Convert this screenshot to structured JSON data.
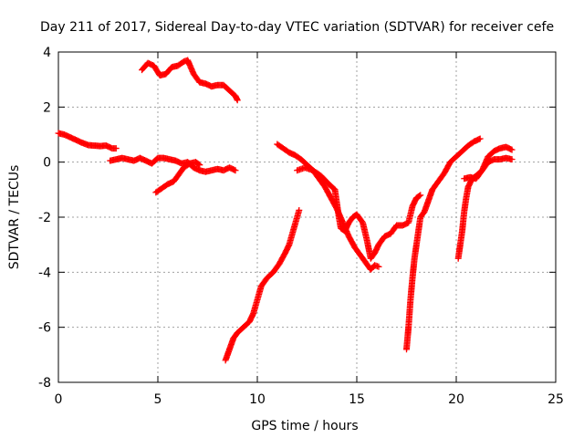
{
  "chart_data": {
    "type": "scatter",
    "title": "Day 211 of 2017, Sidereal Day-to-day VTEC variation (SDTVAR) for receiver cefe",
    "xlabel": "GPS time / hours",
    "ylabel": "SDTVAR / TECUs",
    "xlim": [
      0,
      25
    ],
    "ylim": [
      -8,
      4
    ],
    "xticks": [
      "0",
      "5",
      "10",
      "15",
      "20",
      "25"
    ],
    "yticks": [
      "-8",
      "-6",
      "-4",
      "-2",
      "0",
      "2",
      "4"
    ],
    "grid": true,
    "marker": "plus",
    "color": "#ff0000",
    "segments": [
      {
        "points": [
          [
            0.0,
            1.05
          ],
          [
            0.3,
            1.0
          ],
          [
            0.6,
            0.9
          ],
          [
            0.9,
            0.8
          ],
          [
            1.2,
            0.7
          ],
          [
            1.5,
            0.62
          ],
          [
            1.8,
            0.6
          ],
          [
            2.1,
            0.58
          ],
          [
            2.4,
            0.6
          ],
          [
            2.7,
            0.5
          ],
          [
            2.9,
            0.5
          ]
        ]
      },
      {
        "points": [
          [
            2.6,
            0.05
          ],
          [
            2.9,
            0.1
          ],
          [
            3.2,
            0.15
          ],
          [
            3.5,
            0.1
          ],
          [
            3.8,
            0.05
          ],
          [
            4.1,
            0.15
          ],
          [
            4.4,
            0.05
          ],
          [
            4.7,
            -0.05
          ],
          [
            5.0,
            0.15
          ],
          [
            5.3,
            0.15
          ],
          [
            5.6,
            0.1
          ],
          [
            5.9,
            0.05
          ],
          [
            6.2,
            -0.05
          ],
          [
            6.5,
            0.0
          ],
          [
            6.8,
            -0.2
          ],
          [
            7.1,
            -0.3
          ],
          [
            7.4,
            -0.35
          ],
          [
            7.7,
            -0.3
          ],
          [
            8.0,
            -0.25
          ],
          [
            8.3,
            -0.3
          ],
          [
            8.6,
            -0.2
          ],
          [
            8.9,
            -0.3
          ]
        ]
      },
      {
        "points": [
          [
            4.9,
            -1.1
          ],
          [
            5.2,
            -0.95
          ],
          [
            5.5,
            -0.8
          ],
          [
            5.8,
            -0.7
          ],
          [
            6.1,
            -0.4
          ],
          [
            6.3,
            -0.2
          ],
          [
            6.6,
            -0.05
          ],
          [
            6.9,
            0.0
          ],
          [
            7.1,
            -0.1
          ]
        ]
      },
      {
        "points": [
          [
            4.2,
            3.35
          ],
          [
            4.5,
            3.6
          ],
          [
            4.8,
            3.5
          ],
          [
            5.1,
            3.15
          ],
          [
            5.4,
            3.2
          ],
          [
            5.7,
            3.45
          ],
          [
            6.0,
            3.5
          ],
          [
            6.3,
            3.65
          ],
          [
            6.5,
            3.7
          ],
          [
            6.8,
            3.2
          ],
          [
            7.1,
            2.9
          ],
          [
            7.4,
            2.85
          ],
          [
            7.7,
            2.75
          ],
          [
            8.0,
            2.8
          ],
          [
            8.3,
            2.8
          ],
          [
            8.6,
            2.6
          ],
          [
            8.9,
            2.4
          ],
          [
            9.0,
            2.25
          ]
        ]
      },
      {
        "points": [
          [
            8.4,
            -7.2
          ],
          [
            8.6,
            -6.8
          ],
          [
            8.8,
            -6.4
          ],
          [
            9.0,
            -6.2
          ],
          [
            9.3,
            -6.0
          ],
          [
            9.6,
            -5.8
          ],
          [
            9.8,
            -5.5
          ],
          [
            10.0,
            -5.0
          ],
          [
            10.2,
            -4.5
          ],
          [
            10.5,
            -4.2
          ],
          [
            10.8,
            -4.0
          ],
          [
            11.1,
            -3.7
          ],
          [
            11.4,
            -3.3
          ],
          [
            11.6,
            -3.0
          ],
          [
            11.8,
            -2.5
          ],
          [
            12.0,
            -2.0
          ],
          [
            12.1,
            -1.75
          ]
        ]
      },
      {
        "points": [
          [
            11.0,
            0.65
          ],
          [
            11.3,
            0.5
          ],
          [
            11.6,
            0.35
          ],
          [
            11.9,
            0.25
          ],
          [
            12.2,
            0.1
          ],
          [
            12.5,
            -0.1
          ],
          [
            12.8,
            -0.3
          ],
          [
            13.1,
            -0.6
          ],
          [
            13.4,
            -0.9
          ],
          [
            13.7,
            -1.3
          ],
          [
            14.0,
            -1.7
          ],
          [
            14.3,
            -2.2
          ],
          [
            14.6,
            -2.7
          ],
          [
            14.9,
            -3.1
          ],
          [
            15.2,
            -3.4
          ],
          [
            15.5,
            -3.7
          ],
          [
            15.7,
            -3.9
          ],
          [
            15.9,
            -3.75
          ],
          [
            16.1,
            -3.8
          ]
        ]
      },
      {
        "points": [
          [
            12.0,
            -0.3
          ],
          [
            12.4,
            -0.2
          ],
          [
            12.8,
            -0.3
          ],
          [
            13.2,
            -0.5
          ],
          [
            13.6,
            -0.8
          ],
          [
            13.9,
            -1.0
          ],
          [
            14.0,
            -1.5
          ],
          [
            14.1,
            -2.0
          ],
          [
            14.2,
            -2.4
          ],
          [
            14.4,
            -2.5
          ],
          [
            14.6,
            -2.2
          ],
          [
            14.8,
            -2.0
          ],
          [
            15.0,
            -1.9
          ],
          [
            15.3,
            -2.2
          ],
          [
            15.5,
            -2.8
          ],
          [
            15.7,
            -3.5
          ],
          [
            15.9,
            -3.3
          ],
          [
            16.1,
            -3.0
          ],
          [
            16.4,
            -2.7
          ],
          [
            16.7,
            -2.6
          ],
          [
            17.0,
            -2.3
          ],
          [
            17.3,
            -2.3
          ],
          [
            17.6,
            -2.2
          ],
          [
            17.8,
            -1.6
          ],
          [
            18.0,
            -1.3
          ],
          [
            18.2,
            -1.2
          ]
        ]
      },
      {
        "points": [
          [
            17.5,
            -6.8
          ],
          [
            17.6,
            -6.0
          ],
          [
            17.7,
            -5.0
          ],
          [
            17.8,
            -4.2
          ],
          [
            17.9,
            -3.5
          ],
          [
            18.0,
            -3.0
          ],
          [
            18.1,
            -2.5
          ],
          [
            18.2,
            -2.0
          ],
          [
            18.4,
            -1.8
          ],
          [
            18.6,
            -1.4
          ],
          [
            18.8,
            -1.0
          ],
          [
            19.1,
            -0.7
          ],
          [
            19.4,
            -0.4
          ],
          [
            19.7,
            0.0
          ],
          [
            20.0,
            0.2
          ],
          [
            20.3,
            0.4
          ],
          [
            20.6,
            0.6
          ],
          [
            20.9,
            0.75
          ],
          [
            21.2,
            0.85
          ]
        ]
      },
      {
        "points": [
          [
            20.1,
            -3.5
          ],
          [
            20.2,
            -3.0
          ],
          [
            20.3,
            -2.5
          ],
          [
            20.4,
            -1.8
          ],
          [
            20.5,
            -1.3
          ],
          [
            20.6,
            -0.9
          ],
          [
            20.8,
            -0.6
          ],
          [
            21.0,
            -0.5
          ],
          [
            21.3,
            -0.3
          ],
          [
            21.6,
            0.0
          ],
          [
            21.9,
            0.1
          ],
          [
            22.2,
            0.1
          ],
          [
            22.5,
            0.15
          ],
          [
            22.8,
            0.1
          ]
        ]
      },
      {
        "points": [
          [
            20.4,
            -0.6
          ],
          [
            20.7,
            -0.55
          ],
          [
            21.0,
            -0.6
          ],
          [
            21.3,
            -0.3
          ],
          [
            21.6,
            0.2
          ],
          [
            21.9,
            0.4
          ],
          [
            22.2,
            0.5
          ],
          [
            22.5,
            0.55
          ],
          [
            22.8,
            0.45
          ]
        ]
      }
    ]
  }
}
